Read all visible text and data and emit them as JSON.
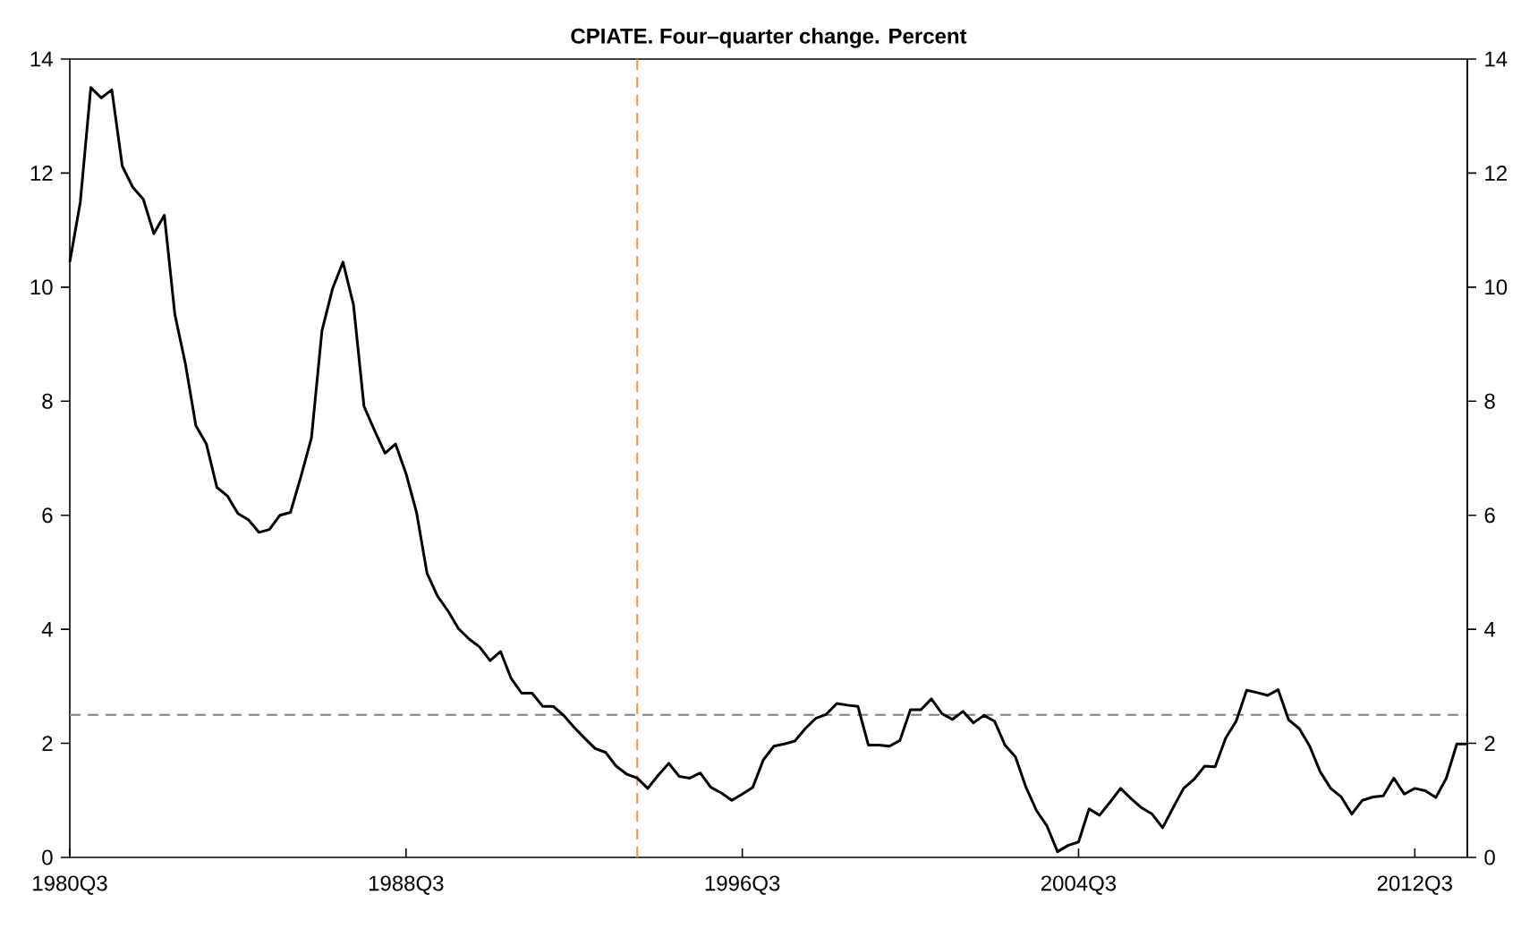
{
  "chart_data": {
    "type": "line",
    "title": "CPIATE. Four–quarter change. Percent",
    "color": "#000000",
    "categories": [
      "1980Q3",
      null,
      null,
      null,
      null,
      null,
      null,
      null,
      null,
      null,
      null,
      null,
      null,
      null,
      null,
      null,
      null,
      null,
      null,
      null,
      null,
      null,
      null,
      null,
      null,
      null,
      null,
      null,
      null,
      null,
      null,
      null,
      "1988Q3",
      null,
      null,
      null,
      null,
      null,
      null,
      null,
      null,
      null,
      null,
      null,
      null,
      null,
      null,
      null,
      null,
      null,
      null,
      null,
      null,
      null,
      null,
      null,
      null,
      null,
      null,
      null,
      null,
      null,
      null,
      null,
      "1996Q3",
      null,
      null,
      null,
      null,
      null,
      null,
      null,
      null,
      null,
      null,
      null,
      null,
      null,
      null,
      null,
      null,
      null,
      null,
      null,
      null,
      null,
      null,
      null,
      null,
      null,
      null,
      null,
      null,
      null,
      null,
      null,
      "2004Q3",
      null,
      null,
      null,
      null,
      null,
      null,
      null,
      null,
      null,
      null,
      null,
      null,
      null,
      null,
      null,
      null,
      null,
      null,
      null,
      null,
      null,
      null,
      null,
      null,
      null,
      null,
      null,
      null,
      null,
      null,
      null,
      "2012Q3",
      null,
      null,
      null,
      null,
      null
    ],
    "values": [
      10.44,
      11.49,
      13.5,
      13.32,
      13.46,
      12.12,
      11.75,
      11.54,
      10.94,
      11.26,
      9.52,
      8.66,
      7.57,
      7.25,
      6.49,
      6.34,
      6.03,
      5.92,
      5.7,
      5.75,
      6.0,
      6.05,
      6.68,
      7.36,
      9.24,
      9.97,
      10.44,
      9.69,
      7.91,
      7.49,
      7.09,
      7.25,
      6.73,
      6.05,
      4.98,
      4.58,
      4.32,
      4.01,
      3.83,
      3.69,
      3.45,
      3.61,
      3.14,
      2.88,
      2.88,
      2.65,
      2.65,
      2.49,
      2.28,
      2.09,
      1.91,
      1.84,
      1.6,
      1.46,
      1.39,
      1.21,
      1.44,
      1.65,
      1.42,
      1.39,
      1.48,
      1.23,
      1.13,
      1.0,
      1.11,
      1.23,
      1.71,
      1.95,
      1.99,
      2.04,
      2.26,
      2.44,
      2.51,
      2.7,
      2.67,
      2.65,
      1.97,
      1.97,
      1.95,
      2.05,
      2.59,
      2.59,
      2.78,
      2.52,
      2.42,
      2.56,
      2.36,
      2.49,
      2.39,
      1.97,
      1.76,
      1.23,
      0.82,
      0.55,
      0.1,
      0.21,
      0.27,
      0.85,
      0.74,
      0.97,
      1.21,
      1.03,
      0.87,
      0.76,
      0.52,
      0.87,
      1.21,
      1.37,
      1.6,
      1.59,
      2.09,
      2.39,
      2.93,
      2.89,
      2.84,
      2.94,
      2.41,
      2.26,
      1.95,
      1.5,
      1.21,
      1.06,
      0.76,
      1.0,
      1.06,
      1.08,
      1.39,
      1.11,
      1.21,
      1.17,
      1.05,
      1.39,
      1.99,
      1.99
    ],
    "ylim": [
      0,
      14
    ],
    "yticks": [
      0,
      2,
      4,
      6,
      8,
      10,
      12,
      14
    ],
    "y2lim": [
      0,
      14
    ],
    "y2ticks": [
      0,
      2,
      4,
      6,
      8,
      10,
      12,
      14
    ],
    "ref_lines": [
      {
        "axis": "y",
        "value": 2.5,
        "color": "#808080",
        "line_style": "dashed"
      }
    ]
  }
}
